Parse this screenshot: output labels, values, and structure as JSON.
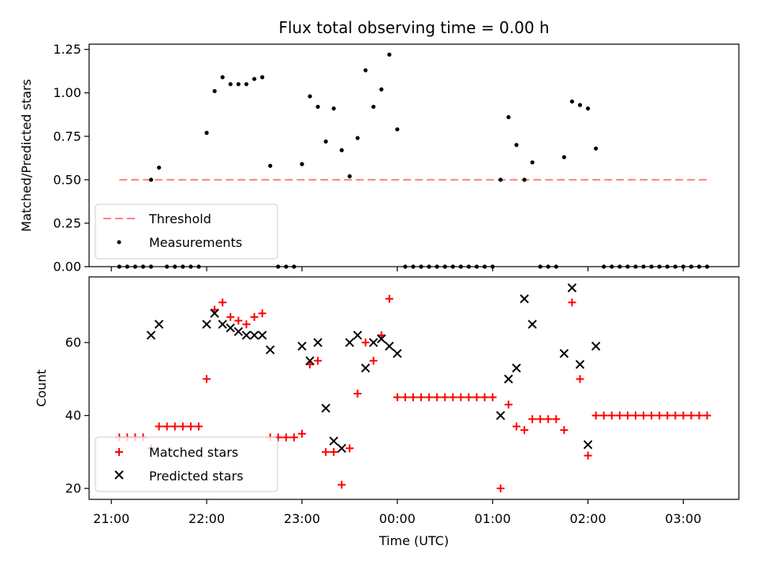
{
  "chart_data": [
    {
      "type": "scatter",
      "title": "Flux total observing time = 0.00 h",
      "xlabel": "",
      "ylabel": "Matched/Predicted stars",
      "xlim": [
        "20:46",
        "03:35"
      ],
      "ylim": [
        0,
        1.28
      ],
      "yticks": [
        "0.00",
        "0.25",
        "0.50",
        "0.75",
        "1.00",
        "1.25"
      ],
      "ytick_values": [
        0,
        0.25,
        0.5,
        0.75,
        1.0,
        1.25
      ],
      "threshold": {
        "name": "Threshold",
        "value": 0.5,
        "x_start": "21:05",
        "x_end": "03:15",
        "color": "#ff8080",
        "style": "dashed"
      },
      "series": [
        {
          "name": "Measurements",
          "color": "#000000",
          "marker": "dot",
          "points": [
            [
              "21:05",
              0
            ],
            [
              "21:10",
              0
            ],
            [
              "21:15",
              0
            ],
            [
              "21:20",
              0
            ],
            [
              "21:25",
              0
            ],
            [
              "21:25",
              0.5
            ],
            [
              "21:30",
              0.57
            ],
            [
              "21:35",
              0
            ],
            [
              "21:40",
              0
            ],
            [
              "21:45",
              0
            ],
            [
              "21:50",
              0
            ],
            [
              "21:55",
              0
            ],
            [
              "22:00",
              0.77
            ],
            [
              "22:05",
              1.01
            ],
            [
              "22:10",
              1.09
            ],
            [
              "22:15",
              1.05
            ],
            [
              "22:20",
              1.05
            ],
            [
              "22:25",
              1.05
            ],
            [
              "22:30",
              1.08
            ],
            [
              "22:35",
              1.09
            ],
            [
              "22:40",
              0.58
            ],
            [
              "22:45",
              0
            ],
            [
              "22:50",
              0
            ],
            [
              "22:55",
              0
            ],
            [
              "23:00",
              0.59
            ],
            [
              "23:05",
              0.98
            ],
            [
              "23:10",
              0.92
            ],
            [
              "23:15",
              0.72
            ],
            [
              "23:20",
              0.91
            ],
            [
              "23:25",
              0.67
            ],
            [
              "23:30",
              0.52
            ],
            [
              "23:35",
              0.74
            ],
            [
              "23:40",
              1.13
            ],
            [
              "23:45",
              0.92
            ],
            [
              "23:50",
              1.02
            ],
            [
              "23:55",
              1.22
            ],
            [
              "00:00",
              0.79
            ],
            [
              "00:05",
              0
            ],
            [
              "00:10",
              0
            ],
            [
              "00:15",
              0
            ],
            [
              "00:20",
              0
            ],
            [
              "00:25",
              0
            ],
            [
              "00:30",
              0
            ],
            [
              "00:35",
              0
            ],
            [
              "00:40",
              0
            ],
            [
              "00:45",
              0
            ],
            [
              "00:50",
              0
            ],
            [
              "00:55",
              0
            ],
            [
              "01:00",
              0
            ],
            [
              "01:05",
              0.5
            ],
            [
              "01:10",
              0.86
            ],
            [
              "01:15",
              0.7
            ],
            [
              "01:20",
              0.5
            ],
            [
              "01:25",
              0.6
            ],
            [
              "01:30",
              0
            ],
            [
              "01:35",
              0
            ],
            [
              "01:40",
              0
            ],
            [
              "01:45",
              0.63
            ],
            [
              "01:50",
              0.95
            ],
            [
              "01:55",
              0.93
            ],
            [
              "02:00",
              0.91
            ],
            [
              "02:05",
              0.68
            ],
            [
              "02:10",
              0
            ],
            [
              "02:15",
              0
            ],
            [
              "02:20",
              0
            ],
            [
              "02:25",
              0
            ],
            [
              "02:30",
              0
            ],
            [
              "02:35",
              0
            ],
            [
              "02:40",
              0
            ],
            [
              "02:45",
              0
            ],
            [
              "02:50",
              0
            ],
            [
              "02:55",
              0
            ],
            [
              "03:00",
              0
            ],
            [
              "03:05",
              0
            ],
            [
              "03:10",
              0
            ],
            [
              "03:15",
              0
            ]
          ]
        }
      ],
      "legend": {
        "position": "lower-left",
        "entries": [
          "Threshold",
          "Measurements"
        ]
      }
    },
    {
      "type": "scatter",
      "title": "",
      "xlabel": "Time (UTC)",
      "ylabel": "Count",
      "xlim": [
        "20:46",
        "03:35"
      ],
      "ylim": [
        17,
        78
      ],
      "xticks": [
        "21:00",
        "22:00",
        "23:00",
        "00:00",
        "01:00",
        "02:00",
        "03:00"
      ],
      "yticks": [
        "20",
        "40",
        "60"
      ],
      "ytick_values": [
        20,
        40,
        60
      ],
      "series": [
        {
          "name": "Matched stars",
          "color": "#ff0000",
          "marker": "plus",
          "points": [
            [
              "21:05",
              34
            ],
            [
              "21:10",
              34
            ],
            [
              "21:15",
              34
            ],
            [
              "21:20",
              34
            ],
            [
              "21:25",
              31
            ],
            [
              "21:30",
              37
            ],
            [
              "21:35",
              37
            ],
            [
              "21:40",
              37
            ],
            [
              "21:45",
              37
            ],
            [
              "21:50",
              37
            ],
            [
              "21:55",
              37
            ],
            [
              "22:00",
              50
            ],
            [
              "22:05",
              69
            ],
            [
              "22:10",
              71
            ],
            [
              "22:15",
              67
            ],
            [
              "22:20",
              66
            ],
            [
              "22:25",
              65
            ],
            [
              "22:30",
              67
            ],
            [
              "22:35",
              68
            ],
            [
              "22:40",
              34
            ],
            [
              "22:45",
              34
            ],
            [
              "22:50",
              34
            ],
            [
              "22:55",
              34
            ],
            [
              "23:00",
              35
            ],
            [
              "23:05",
              54
            ],
            [
              "23:10",
              55
            ],
            [
              "23:15",
              30
            ],
            [
              "23:20",
              30
            ],
            [
              "23:25",
              21
            ],
            [
              "23:30",
              31
            ],
            [
              "23:35",
              46
            ],
            [
              "23:40",
              60
            ],
            [
              "23:45",
              55
            ],
            [
              "23:50",
              62
            ],
            [
              "23:55",
              72
            ],
            [
              "00:00",
              45
            ],
            [
              "00:05",
              45
            ],
            [
              "00:10",
              45
            ],
            [
              "00:15",
              45
            ],
            [
              "00:20",
              45
            ],
            [
              "00:25",
              45
            ],
            [
              "00:30",
              45
            ],
            [
              "00:35",
              45
            ],
            [
              "00:40",
              45
            ],
            [
              "00:45",
              45
            ],
            [
              "00:50",
              45
            ],
            [
              "00:55",
              45
            ],
            [
              "01:00",
              45
            ],
            [
              "01:05",
              20
            ],
            [
              "01:10",
              43
            ],
            [
              "01:15",
              37
            ],
            [
              "01:20",
              36
            ],
            [
              "01:25",
              39
            ],
            [
              "01:30",
              39
            ],
            [
              "01:35",
              39
            ],
            [
              "01:40",
              39
            ],
            [
              "01:45",
              36
            ],
            [
              "01:50",
              71
            ],
            [
              "01:55",
              50
            ],
            [
              "02:00",
              29
            ],
            [
              "02:05",
              40
            ],
            [
              "02:10",
              40
            ],
            [
              "02:15",
              40
            ],
            [
              "02:20",
              40
            ],
            [
              "02:25",
              40
            ],
            [
              "02:30",
              40
            ],
            [
              "02:35",
              40
            ],
            [
              "02:40",
              40
            ],
            [
              "02:45",
              40
            ],
            [
              "02:50",
              40
            ],
            [
              "02:55",
              40
            ],
            [
              "03:00",
              40
            ],
            [
              "03:05",
              40
            ],
            [
              "03:10",
              40
            ],
            [
              "03:15",
              40
            ]
          ]
        },
        {
          "name": "Predicted stars",
          "color": "#000000",
          "marker": "x",
          "points": [
            [
              "21:25",
              62
            ],
            [
              "21:30",
              65
            ],
            [
              "22:00",
              65
            ],
            [
              "22:05",
              68
            ],
            [
              "22:10",
              65
            ],
            [
              "22:15",
              64
            ],
            [
              "22:20",
              63
            ],
            [
              "22:25",
              62
            ],
            [
              "22:30",
              62
            ],
            [
              "22:35",
              62
            ],
            [
              "22:40",
              58
            ],
            [
              "23:00",
              59
            ],
            [
              "23:05",
              55
            ],
            [
              "23:10",
              60
            ],
            [
              "23:15",
              42
            ],
            [
              "23:20",
              33
            ],
            [
              "23:25",
              31
            ],
            [
              "23:30",
              60
            ],
            [
              "23:35",
              62
            ],
            [
              "23:40",
              53
            ],
            [
              "23:45",
              60
            ],
            [
              "23:50",
              61
            ],
            [
              "23:55",
              59
            ],
            [
              "00:00",
              57
            ],
            [
              "01:05",
              40
            ],
            [
              "01:10",
              50
            ],
            [
              "01:15",
              53
            ],
            [
              "01:20",
              72
            ],
            [
              "01:25",
              65
            ],
            [
              "01:45",
              57
            ],
            [
              "01:50",
              75
            ],
            [
              "01:55",
              54
            ],
            [
              "02:00",
              32
            ],
            [
              "02:05",
              59
            ]
          ]
        }
      ],
      "legend": {
        "position": "lower-left",
        "entries": [
          "Matched stars",
          "Predicted stars"
        ]
      }
    }
  ]
}
